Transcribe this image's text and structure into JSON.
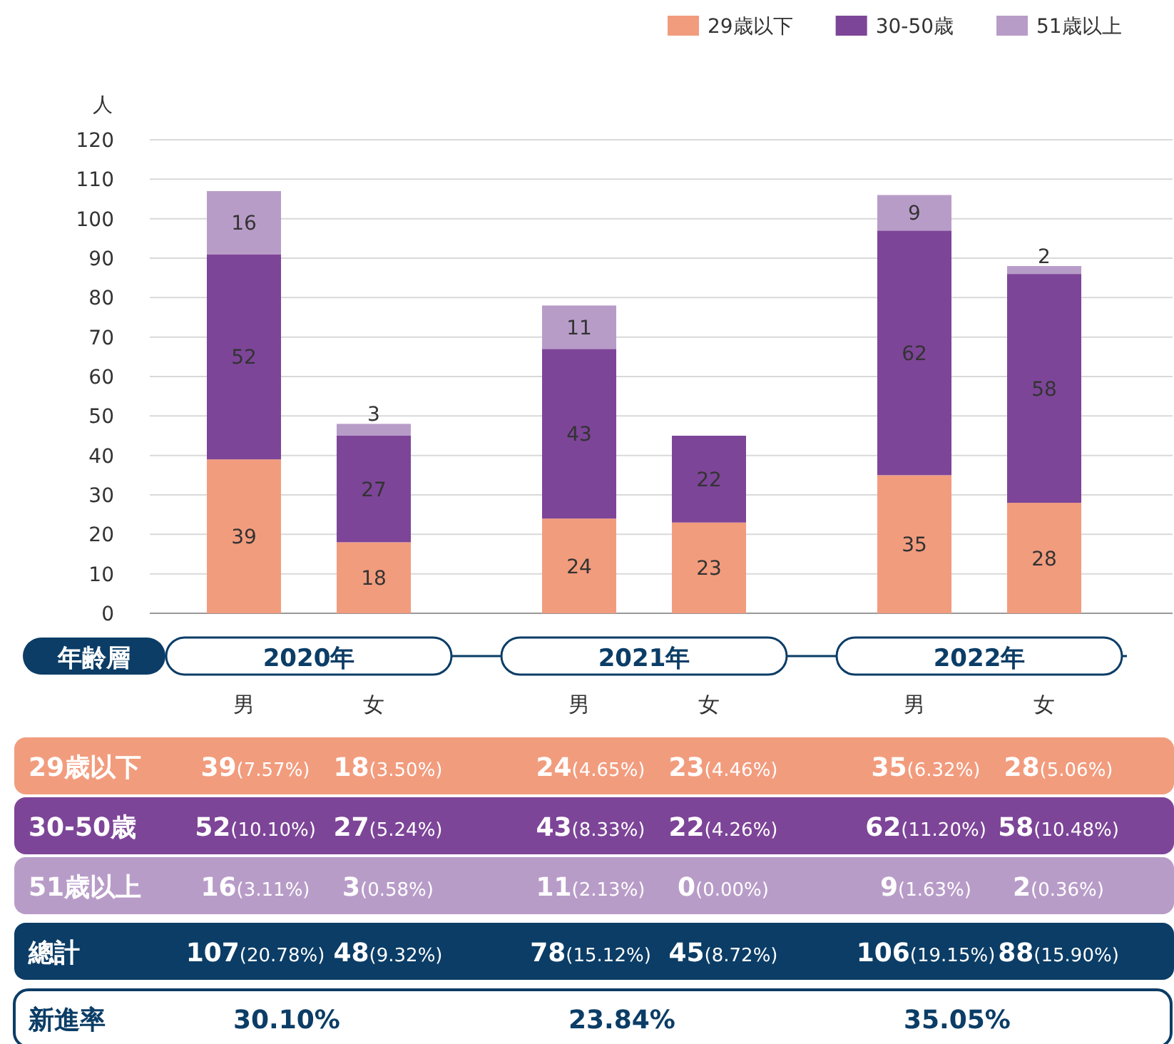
{
  "chart_data": {
    "type": "bar",
    "stacked": true,
    "ylabel": "人",
    "categories": [
      "男",
      "女",
      "男",
      "女",
      "男",
      "女"
    ],
    "series": [
      {
        "name": "29歳以下",
        "color": "#f29c7e",
        "values": [
          39,
          18,
          24,
          23,
          35,
          28
        ],
        "value_labels": [
          "39",
          "18",
          "24",
          "23",
          "35",
          "28"
        ]
      },
      {
        "name": "30-50歳",
        "color": "#7d4598",
        "values": [
          52,
          27,
          43,
          22,
          62,
          58
        ],
        "value_labels": [
          "52",
          "27",
          "43",
          "22",
          "62",
          "58"
        ]
      },
      {
        "name": "51歳以上",
        "color": "#b89cc8",
        "values": [
          16,
          3,
          11,
          0,
          9,
          2
        ],
        "value_labels": [
          "16",
          "3",
          "11",
          null,
          "9",
          "2"
        ]
      }
    ],
    "ylim": [
      0,
      120
    ],
    "yticks": [
      0,
      10,
      20,
      30,
      40,
      50,
      60,
      70,
      80,
      90,
      100,
      110,
      120
    ],
    "grid": "y",
    "legend": "top right",
    "annotations": [
      "年齢層",
      "2020年",
      "2021年",
      "2022年",
      "總計",
      "新進率",
      "**39**(7.57%)",
      "**18**(3.50%)",
      "**24**(4.65%)",
      "**23**(4.46%)",
      "**35**(6.32%)",
      "**28**(5.06%)",
      "**52**(10.10%)",
      "**27**(5.24%)",
      "**43**(8.33%)",
      "**22**(4.26%)",
      "**62**(11.20%)",
      "**58**(10.48%)",
      "**16**(3.11%)",
      "**3**(0.58%)",
      "**11**(2.13%)",
      "**0**(0.00%)",
      "**9**(1.63%)",
      "**2**(0.36%)",
      "**107**(20.78%)",
      "**48**(9.32%)",
      "**78**(15.12%)",
      "**45**(8.72%)",
      "**106**(19.15%)",
      "**88**(15.90%)",
      "30.10%",
      "23.84%",
      "35.05%"
    ]
  }
}
